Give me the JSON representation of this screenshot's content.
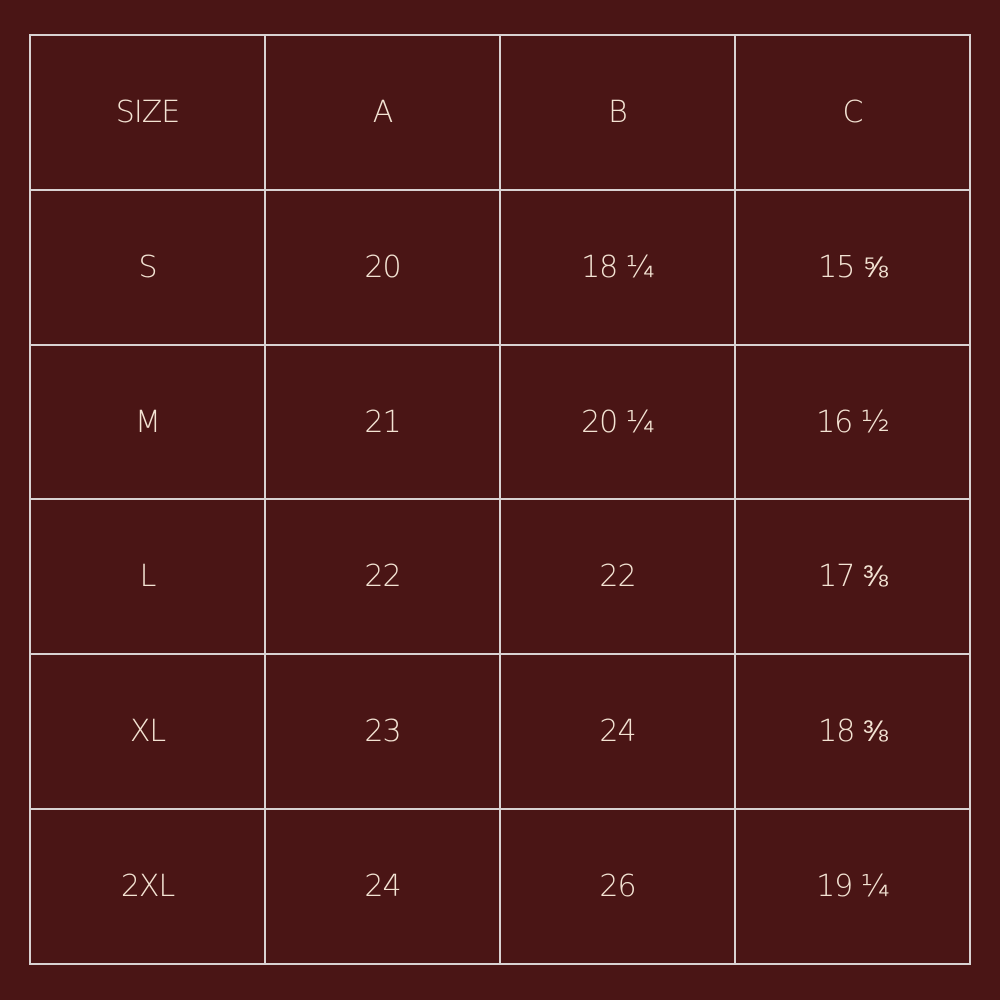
{
  "colors": {
    "background": "#4a1515",
    "text": "#f3e3d3",
    "grid": "#d9d2d2"
  },
  "header": [
    "SIZE",
    "A",
    "B",
    "C"
  ],
  "rows": [
    [
      "S",
      "20",
      "18 ¼",
      "15 ⅝"
    ],
    [
      "M",
      "21",
      "20 ¼",
      "16 ½"
    ],
    [
      "L",
      "22",
      "22",
      "17 ⅜"
    ],
    [
      "XL",
      "23",
      "24",
      "18 ⅜"
    ],
    [
      "2XL",
      "24",
      "26",
      "19 ¼"
    ]
  ]
}
